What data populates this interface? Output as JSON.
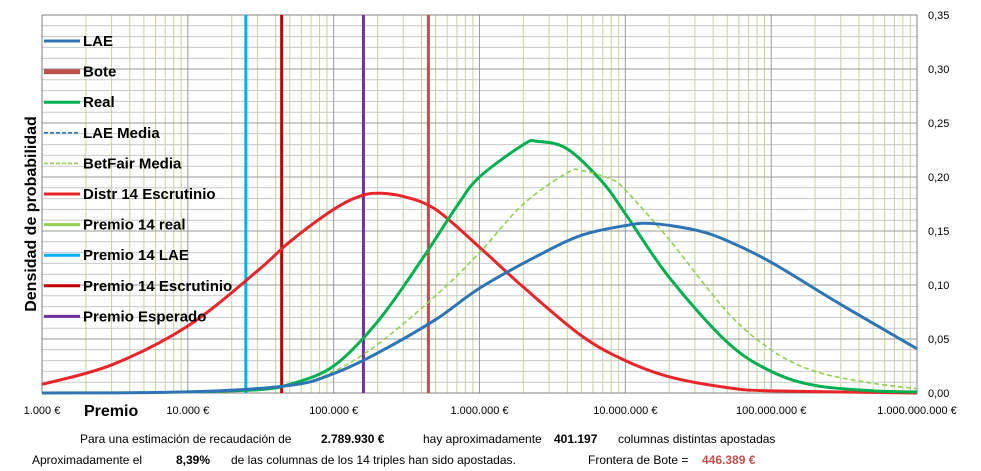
{
  "chart_data": {
    "type": "line",
    "ylabel": "Densidad de probabilidad",
    "xlabel": "Premio",
    "x_scale": "log",
    "xlim": [
      1000,
      1000000000
    ],
    "ylim": [
      0,
      0.35
    ],
    "x_ticks": [
      1000,
      10000,
      100000,
      1000000,
      10000000,
      100000000,
      1000000000
    ],
    "x_tick_labels": [
      "1.000 €",
      "10.000 €",
      "100.000 €",
      "1.000.000 €",
      "10.000.000 €",
      "100.000.000 €",
      "1.000.000.000 €"
    ],
    "y_ticks": [
      0,
      0.05,
      0.1,
      0.15,
      0.2,
      0.25,
      0.3,
      0.35
    ],
    "y_tick_labels": [
      "0,00",
      "0,05",
      "0,10",
      "0,15",
      "0,20",
      "0,25",
      "0,30",
      "0,35"
    ],
    "grid": true,
    "legend_position": "left",
    "series": [
      {
        "name": "LAE",
        "color": "#2e75b6",
        "style": "solid",
        "kind": "curve",
        "points": [
          [
            1000,
            0.0
          ],
          [
            10000,
            0.001
          ],
          [
            50000,
            0.007
          ],
          [
            100000,
            0.018
          ],
          [
            200000,
            0.037
          ],
          [
            500000,
            0.068
          ],
          [
            1000000,
            0.097
          ],
          [
            2500000,
            0.127
          ],
          [
            5000000,
            0.146
          ],
          [
            10000000,
            0.155
          ],
          [
            15000000,
            0.157
          ],
          [
            30000000,
            0.151
          ],
          [
            50000000,
            0.141
          ],
          [
            100000000,
            0.121
          ],
          [
            300000000,
            0.082
          ],
          [
            1000000000,
            0.041
          ]
        ]
      },
      {
        "name": "Bote",
        "color": "#c0504d",
        "style": "solid",
        "kind": "vline",
        "x": 446389
      },
      {
        "name": "Real",
        "color": "#00b050",
        "style": "solid",
        "kind": "curve",
        "points": [
          [
            10000,
            0.001
          ],
          [
            30000,
            0.003
          ],
          [
            50000,
            0.008
          ],
          [
            100000,
            0.025
          ],
          [
            200000,
            0.066
          ],
          [
            400000,
            0.123
          ],
          [
            700000,
            0.173
          ],
          [
            1000000,
            0.2
          ],
          [
            2000000,
            0.23
          ],
          [
            2500000,
            0.233
          ],
          [
            4000000,
            0.226
          ],
          [
            7000000,
            0.195
          ],
          [
            10000000,
            0.166
          ],
          [
            20000000,
            0.107
          ],
          [
            50000000,
            0.047
          ],
          [
            100000000,
            0.02
          ],
          [
            200000000,
            0.007
          ],
          [
            500000000,
            0.002
          ],
          [
            1000000000,
            0.001
          ]
        ]
      },
      {
        "name": "LAE Media",
        "color": "#2e75b6",
        "style": "dashed",
        "kind": "curve",
        "points": [
          [
            1000,
            0.0
          ],
          [
            10000,
            0.001
          ],
          [
            50000,
            0.007
          ],
          [
            100000,
            0.018
          ],
          [
            200000,
            0.037
          ],
          [
            500000,
            0.068
          ],
          [
            1000000,
            0.097
          ],
          [
            2500000,
            0.127
          ],
          [
            5000000,
            0.146
          ],
          [
            10000000,
            0.155
          ],
          [
            15000000,
            0.157
          ],
          [
            30000000,
            0.151
          ],
          [
            50000000,
            0.141
          ],
          [
            100000000,
            0.121
          ],
          [
            300000000,
            0.082
          ],
          [
            1000000000,
            0.041
          ]
        ]
      },
      {
        "name": "BetFair Media",
        "color": "#92d050",
        "style": "dashed",
        "kind": "curve",
        "points": [
          [
            10000,
            0.0
          ],
          [
            50000,
            0.007
          ],
          [
            100000,
            0.02
          ],
          [
            200000,
            0.045
          ],
          [
            500000,
            0.09
          ],
          [
            1000000,
            0.13
          ],
          [
            2000000,
            0.175
          ],
          [
            4000000,
            0.204
          ],
          [
            5000000,
            0.206
          ],
          [
            8000000,
            0.198
          ],
          [
            10000000,
            0.188
          ],
          [
            20000000,
            0.142
          ],
          [
            50000000,
            0.075
          ],
          [
            100000000,
            0.04
          ],
          [
            200000000,
            0.02
          ],
          [
            500000000,
            0.009
          ],
          [
            1000000000,
            0.004
          ]
        ]
      },
      {
        "name": "Distr 14 Escrutinio",
        "color": "#e8262a",
        "style": "solid",
        "kind": "curve",
        "points": [
          [
            1000,
            0.008
          ],
          [
            3000,
            0.026
          ],
          [
            10000,
            0.062
          ],
          [
            30000,
            0.113
          ],
          [
            50000,
            0.14
          ],
          [
            100000,
            0.17
          ],
          [
            150000,
            0.182
          ],
          [
            200000,
            0.185
          ],
          [
            300000,
            0.182
          ],
          [
            500000,
            0.17
          ],
          [
            1000000,
            0.135
          ],
          [
            2000000,
            0.098
          ],
          [
            5000000,
            0.053
          ],
          [
            10000000,
            0.03
          ],
          [
            20000000,
            0.015
          ],
          [
            50000000,
            0.005
          ],
          [
            100000000,
            0.002
          ],
          [
            1000000000,
            0.0
          ]
        ]
      },
      {
        "name": "Premio 14 real",
        "color": "#92d050",
        "style": "solid",
        "kind": "legend-only"
      },
      {
        "name": "Premio 14 LAE",
        "color": "#00b0f0",
        "style": "solid",
        "kind": "vline",
        "x": 25000
      },
      {
        "name": "Premio 14 Escrutinio",
        "color": "#c00000",
        "style": "solid",
        "kind": "vline",
        "x": 44000
      },
      {
        "name": "Premio Esperado",
        "color": "#7030a0",
        "style": "solid",
        "kind": "vline",
        "x": 160000
      }
    ]
  },
  "footer": {
    "line1_prefix": "Para  una estimación de recaudación de",
    "recaudacion": "2.789.930 €",
    "line1_mid": "hay aproximadamente",
    "columnas": "401.197",
    "line1_suffix": "columnas distintas apostadas",
    "line2_prefix": "Aproximadamente el",
    "porcentaje": "8,39%",
    "line2_mid": "de las columnas de los 14 triples han sido apostadas.",
    "frontera_label": "Frontera de Bote =",
    "frontera_value": "446.389 €",
    "frontera_color": "#c0504d"
  }
}
